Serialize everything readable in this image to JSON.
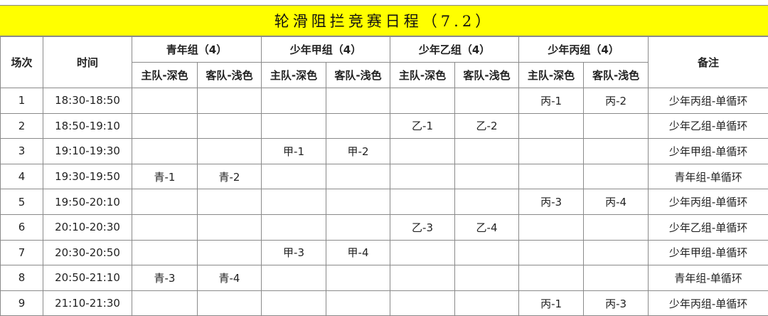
{
  "title": "轮滑阻拦竞赛日程（7.2）",
  "headers": {
    "match_no": "场次",
    "time": "时间",
    "remarks": "备注",
    "groups": [
      "青年组（4）",
      "少年甲组（4）",
      "少年乙组（4）",
      "少年丙组（4）"
    ],
    "home": "主队-深色",
    "away": "客队-浅色"
  },
  "rows": [
    [
      "1",
      "18:30-18:50",
      "",
      "",
      "",
      "",
      "",
      "",
      "丙-1",
      "丙-2",
      "少年丙组-单循环"
    ],
    [
      "2",
      "18:50-19:10",
      "",
      "",
      "",
      "",
      "乙-1",
      "乙-2",
      "",
      "",
      "少年乙组-单循环"
    ],
    [
      "3",
      "19:10-19:30",
      "",
      "",
      "甲-1",
      "甲-2",
      "",
      "",
      "",
      "",
      "少年甲组-单循环"
    ],
    [
      "4",
      "19:30-19:50",
      "青-1",
      "青-2",
      "",
      "",
      "",
      "",
      "",
      "",
      "青年组-单循环"
    ],
    [
      "5",
      "19:50-20:10",
      "",
      "",
      "",
      "",
      "",
      "",
      "丙-3",
      "丙-4",
      "少年丙组-单循环"
    ],
    [
      "6",
      "20:10-20:30",
      "",
      "",
      "",
      "",
      "乙-3",
      "乙-4",
      "",
      "",
      "少年乙组-单循环"
    ],
    [
      "7",
      "20:30-20:50",
      "",
      "",
      "甲-3",
      "甲-4",
      "",
      "",
      "",
      "",
      "少年甲组-单循环"
    ],
    [
      "8",
      "20:50-21:10",
      "青-3",
      "青-4",
      "",
      "",
      "",
      "",
      "",
      "",
      "青年组-单循环"
    ],
    [
      "9",
      "21:10-21:30",
      "",
      "",
      "",
      "",
      "",
      "",
      "丙-1",
      "丙-3",
      "少年丙组-单循环"
    ]
  ]
}
